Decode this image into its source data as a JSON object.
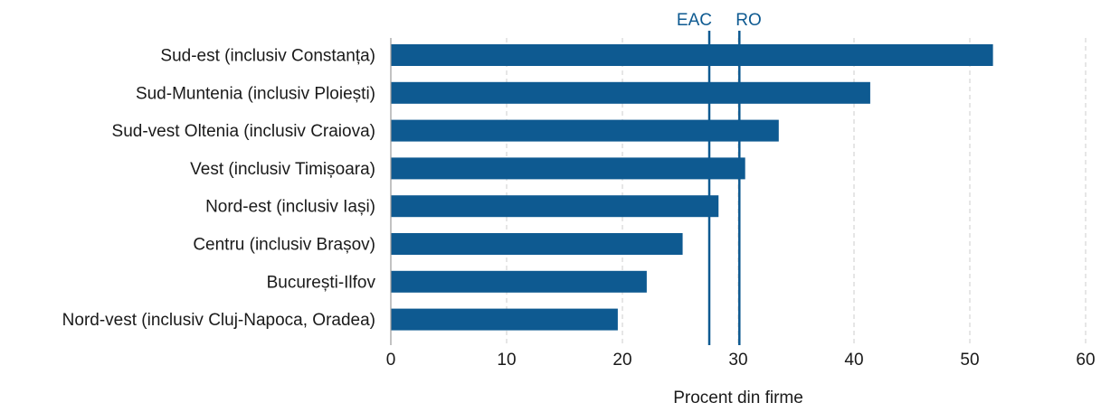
{
  "chart_data": {
    "type": "bar",
    "orientation": "horizontal",
    "categories": [
      "Sud-est (inclusiv Constanța)",
      "Sud-Muntenia (inclusiv Ploiești)",
      "Sud-vest Oltenia (inclusiv Craiova)",
      "Vest (inclusiv Timișoara)",
      "Nord-est (inclusiv Iași)",
      "Centru (inclusiv Brașov)",
      "București-Ilfov",
      "Nord-vest (inclusiv Cluj-Napoca, Oradea)"
    ],
    "values": [
      52.0,
      41.4,
      33.5,
      30.6,
      28.3,
      25.2,
      22.1,
      19.6
    ],
    "xlabel": "Procent din firme",
    "xlim": [
      0,
      60
    ],
    "xticks": [
      0,
      10,
      20,
      30,
      40,
      50,
      60
    ],
    "grid": "vertical-dashed",
    "reference_lines": [
      {
        "label": "EAC",
        "value": 27.5
      },
      {
        "label": "RO",
        "value": 30.1
      }
    ],
    "colors": {
      "bar": "#0e5a91",
      "reference_line": "#0e5a91",
      "reference_label": "#0e5a91",
      "grid": "#cccccc",
      "axis": "#999999"
    }
  }
}
